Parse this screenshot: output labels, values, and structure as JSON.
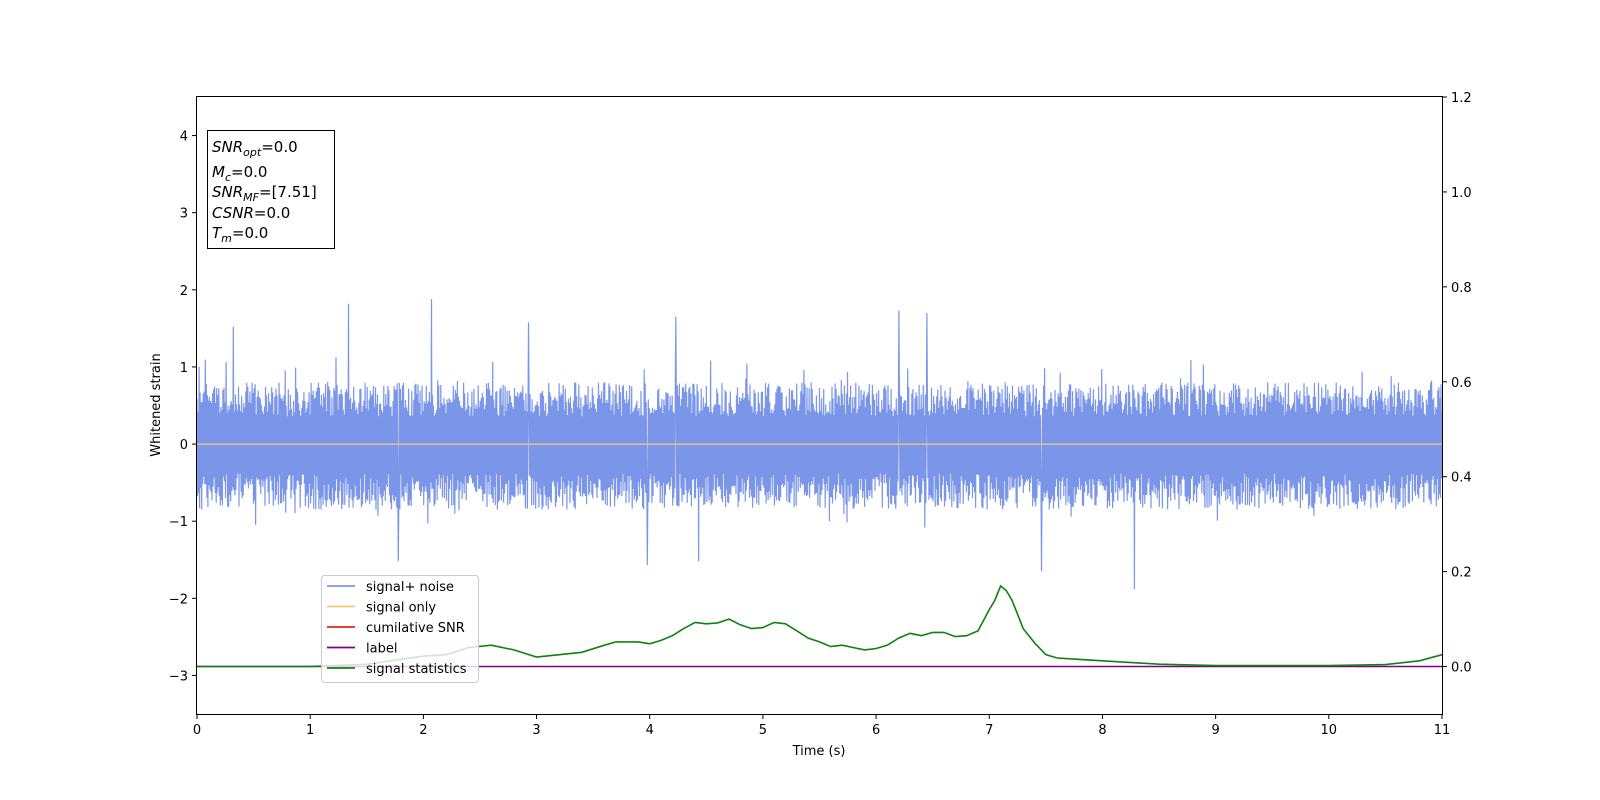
{
  "chart_data": {
    "type": "line",
    "xlabel": "Time (s)",
    "ylabel": "Whitened strain",
    "xlim": [
      0,
      11
    ],
    "ylim": [
      -3.5,
      4.5
    ],
    "y2lim": [
      -0.1,
      1.2
    ],
    "x_ticks": [
      0,
      1,
      2,
      3,
      4,
      5,
      6,
      7,
      8,
      9,
      10,
      11
    ],
    "y_ticks": [
      -3,
      -2,
      -1,
      0,
      1,
      2,
      3,
      4
    ],
    "y_tick_labels": [
      "−3",
      "−2",
      "−1",
      "0",
      "1",
      "2",
      "3",
      "4"
    ],
    "y2_ticks": [
      0.0,
      0.2,
      0.4,
      0.6,
      0.8,
      1.0,
      1.2
    ],
    "y2_tick_labels": [
      "0.0",
      "0.2",
      "0.4",
      "0.6",
      "0.8",
      "1.0",
      "1.2"
    ],
    "grid": false,
    "legend_position": "lower-left",
    "legend": [
      {
        "label": "signal+ noise",
        "color": "#7b96e8"
      },
      {
        "label": "signal only",
        "color": "#f5c97a"
      },
      {
        "label": "cumilative SNR",
        "color": "#e8231a"
      },
      {
        "label": "label",
        "color": "#800080"
      },
      {
        "label": "signal statistics",
        "color": "#118011"
      }
    ],
    "stats_box": [
      {
        "main": "SNR",
        "sub": "opt",
        "rest": "=0.0"
      },
      {
        "main": "M",
        "sub": "c",
        "rest": "=0.0"
      },
      {
        "main": "SNR",
        "sub": "MF",
        "rest": "=[7.51]"
      },
      {
        "main": "CSNR",
        "sub": "",
        "rest": "=0.0"
      },
      {
        "main": "T",
        "sub": "m",
        "rest": "=0.0"
      }
    ],
    "series": [
      {
        "name": "signal+ noise",
        "axis": "left",
        "color": "#7b96e8",
        "kind": "noise",
        "x_range": [
          0,
          11
        ],
        "envelope": {
          "upper": 0.8,
          "lower": -0.85
        },
        "peaks": [
          {
            "x": 1.34,
            "y": 1.82
          },
          {
            "x": 2.07,
            "y": 1.88
          },
          {
            "x": 4.23,
            "y": 1.65
          },
          {
            "x": 6.2,
            "y": 1.73
          },
          {
            "x": 6.45,
            "y": 1.7
          },
          {
            "x": 0.32,
            "y": 1.52
          },
          {
            "x": 2.93,
            "y": 1.58
          },
          {
            "x": 3.98,
            "y": -1.57
          },
          {
            "x": 7.46,
            "y": -1.65
          },
          {
            "x": 8.28,
            "y": -1.88
          },
          {
            "x": 1.78,
            "y": -1.52
          },
          {
            "x": 4.43,
            "y": -1.52
          }
        ]
      },
      {
        "name": "signal only",
        "axis": "left",
        "color": "#f5c97a",
        "x": [
          0,
          11
        ],
        "y": [
          0,
          0
        ]
      },
      {
        "name": "label",
        "axis": "right",
        "color": "#800080",
        "x": [
          0,
          11
        ],
        "y": [
          0,
          0
        ]
      },
      {
        "name": "signal statistics",
        "axis": "right",
        "color": "#118011",
        "x": [
          0,
          0.5,
          1.0,
          1.5,
          1.8,
          2.0,
          2.2,
          2.4,
          2.6,
          2.8,
          3.0,
          3.2,
          3.4,
          3.6,
          3.7,
          3.9,
          4.0,
          4.1,
          4.2,
          4.3,
          4.4,
          4.5,
          4.6,
          4.7,
          4.8,
          4.9,
          5.0,
          5.1,
          5.2,
          5.3,
          5.4,
          5.5,
          5.6,
          5.7,
          5.8,
          5.9,
          6.0,
          6.1,
          6.2,
          6.3,
          6.4,
          6.5,
          6.6,
          6.7,
          6.8,
          6.9,
          7.0,
          7.05,
          7.1,
          7.15,
          7.2,
          7.25,
          7.3,
          7.4,
          7.5,
          7.6,
          7.8,
          8.0,
          8.5,
          9.0,
          9.5,
          10.0,
          10.5,
          10.8,
          11.0
        ],
        "y": [
          0.0,
          0.0,
          0.0,
          0.005,
          0.015,
          0.022,
          0.025,
          0.04,
          0.045,
          0.035,
          0.02,
          0.025,
          0.03,
          0.045,
          0.052,
          0.052,
          0.048,
          0.055,
          0.065,
          0.08,
          0.093,
          0.09,
          0.092,
          0.1,
          0.088,
          0.08,
          0.082,
          0.093,
          0.09,
          0.075,
          0.06,
          0.052,
          0.042,
          0.045,
          0.04,
          0.035,
          0.038,
          0.045,
          0.06,
          0.07,
          0.065,
          0.072,
          0.072,
          0.063,
          0.065,
          0.075,
          0.12,
          0.14,
          0.17,
          0.16,
          0.14,
          0.11,
          0.08,
          0.05,
          0.025,
          0.018,
          0.015,
          0.012,
          0.005,
          0.002,
          0.002,
          0.002,
          0.004,
          0.012,
          0.025
        ]
      }
    ]
  }
}
